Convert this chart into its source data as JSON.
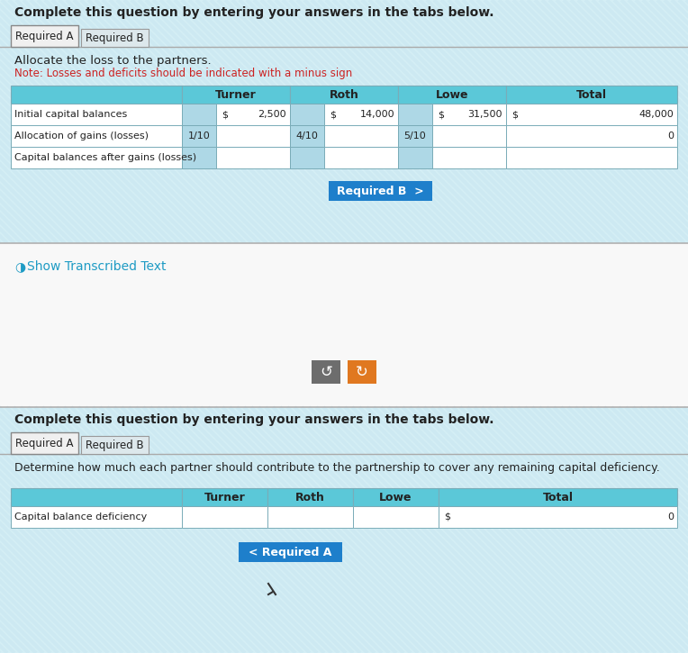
{
  "top_section": {
    "title": "Complete this question by entering your answers in the tabs below.",
    "tab_active": "Required A",
    "tab_inactive": "Required B",
    "instruction": "Allocate the loss to the partners.",
    "note": "Note: Losses and deficits should be indicated with a minus sign",
    "rows": [
      {
        "label": "Initial capital balances",
        "turner_prefix": "$",
        "turner_val": "2,500",
        "roth_prefix": "$",
        "roth_val": "14,000",
        "lowe_prefix": "$",
        "lowe_val": "31,500",
        "total_prefix": "$",
        "total_val": "48,000",
        "turner_left": "",
        "roth_left": "",
        "lowe_left": ""
      },
      {
        "label": "Allocation of gains (losses)",
        "turner_prefix": "",
        "turner_val": "",
        "roth_prefix": "",
        "roth_val": "",
        "lowe_prefix": "",
        "lowe_val": "",
        "total_prefix": "",
        "total_val": "0",
        "turner_left": "1/10",
        "roth_left": "4/10",
        "lowe_left": "5/10"
      },
      {
        "label": "Capital balances after gains (losses)",
        "turner_prefix": "",
        "turner_val": "",
        "roth_prefix": "",
        "roth_val": "",
        "lowe_prefix": "",
        "lowe_val": "",
        "total_prefix": "",
        "total_val": "",
        "turner_left": "",
        "roth_left": "",
        "lowe_left": ""
      }
    ],
    "button_text": "Required B  >",
    "button_color": "#1e7fcb"
  },
  "middle_section": {
    "link_icon": "◑",
    "link_text": "Show Transcribed Text",
    "link_color": "#1e9bc4",
    "btn1_color": "#6d6d6d",
    "btn2_color": "#e07820",
    "btn_text1": "↺",
    "btn_text2": "↻"
  },
  "bottom_section": {
    "title": "Complete this question by entering your answers in the tabs below.",
    "tab_active": "Required A",
    "tab_inactive": "Required B",
    "instruction": "Determine how much each partner should contribute to the partnership to cover any remaining capital deficiency.",
    "rows": [
      {
        "label": "Capital balance deficiency",
        "total_prefix": "$",
        "total_val": "0"
      }
    ],
    "button_text": "< Required A",
    "button_color": "#1e7fcb"
  },
  "header_bg": "#5bc8d8",
  "border_color": "#7aacb8",
  "text_color_note": "#cc2222",
  "top_bg": "#cde8ed",
  "bot_bg": "#cde8ed",
  "mid_bg": "#f8f8f8",
  "stripe_color": "#b0d8e4",
  "sep_color": "#b0b0b0"
}
